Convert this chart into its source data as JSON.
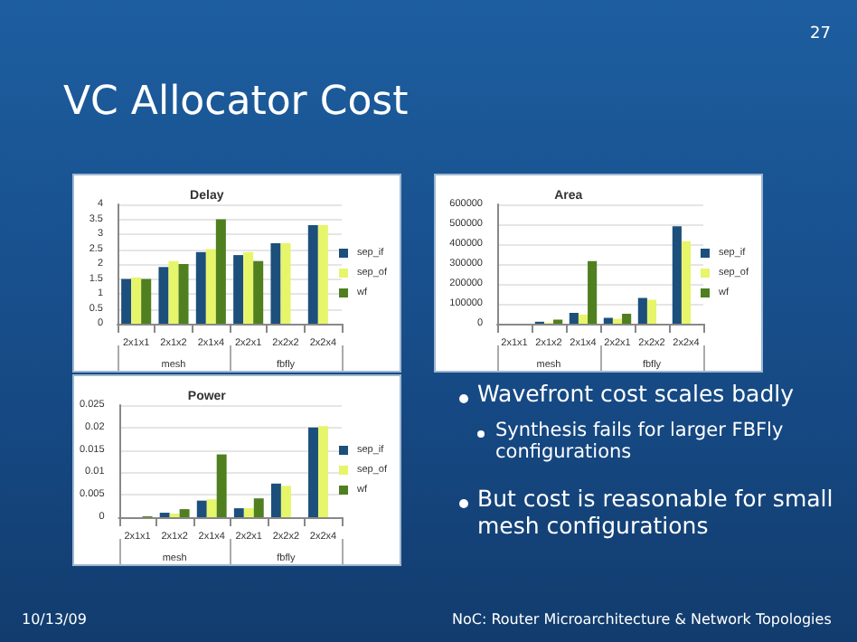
{
  "chart_data": [
    {
      "type": "other",
      "title": "VC Allocator Cost",
      "annotations": [
        "27",
        "Wavefront cost scales badly",
        "Synthesis fails for larger FBFly configurations",
        "But cost is reasonable for small mesh configurations",
        "10/13/09",
        "NoC: Router Microarchitecture & Network Topologies"
      ]
    },
    {
      "type": "bar",
      "title": "Delay",
      "categories": [
        "2x1x1",
        "2x1x2",
        "2x1x4",
        "2x2x1",
        "2x2x2",
        "2x2x4"
      ],
      "annotations": [
        "mesh",
        "fbfly"
      ],
      "series": [
        {
          "name": "sep_if",
          "color": "#1c4f7c",
          "values": [
            1.5,
            1.9,
            2.4,
            2.3,
            2.7,
            3.3
          ]
        },
        {
          "name": "sep_of",
          "color": "#e6f56a",
          "values": [
            1.55,
            2.1,
            2.5,
            2.4,
            2.7,
            3.3
          ]
        },
        {
          "name": "wf",
          "color": "#4f7f1f",
          "values": [
            1.5,
            2.0,
            3.5,
            2.1,
            null,
            null
          ]
        }
      ],
      "ylim": [
        0,
        4
      ],
      "yticks": [
        0,
        0.5,
        1,
        1.5,
        2,
        2.5,
        3,
        3.5,
        4
      ],
      "grid": "y",
      "legend": "right"
    },
    {
      "type": "bar",
      "title": "Area",
      "categories": [
        "2x1x1",
        "2x1x2",
        "2x1x4",
        "2x2x1",
        "2x2x2",
        "2x2x4"
      ],
      "annotations": [
        "mesh",
        "fbfly"
      ],
      "series": [
        {
          "name": "sep_if",
          "color": "#1c4f7c",
          "values": [
            0,
            10000,
            55000,
            30000,
            130000,
            490000
          ]
        },
        {
          "name": "sep_of",
          "color": "#e6f56a",
          "values": [
            0,
            5000,
            45000,
            25000,
            120000,
            415000
          ]
        },
        {
          "name": "wf",
          "color": "#4f7f1f",
          "values": [
            0,
            20000,
            315000,
            50000,
            null,
            null
          ]
        }
      ],
      "ylim": [
        0,
        600000
      ],
      "yticks": [
        0,
        100000,
        200000,
        300000,
        400000,
        500000,
        600000
      ],
      "grid": "y",
      "legend": "right"
    },
    {
      "type": "bar",
      "title": "Power",
      "categories": [
        "2x1x1",
        "2x1x2",
        "2x1x4",
        "2x2x1",
        "2x2x2",
        "2x2x4"
      ],
      "annotations": [
        "mesh",
        "fbfly"
      ],
      "series": [
        {
          "name": "sep_if",
          "color": "#1c4f7c",
          "values": [
            null,
            0.001,
            0.0037,
            0.002,
            0.0075,
            0.02
          ]
        },
        {
          "name": "sep_of",
          "color": "#e6f56a",
          "values": [
            null,
            0.0008,
            0.004,
            0.002,
            0.007,
            0.0203
          ]
        },
        {
          "name": "wf",
          "color": "#4f7f1f",
          "values": [
            0.0002,
            0.0018,
            0.014,
            0.0042,
            null,
            null
          ]
        }
      ],
      "ylim": [
        0,
        0.025
      ],
      "yticks": [
        0,
        0.005,
        0.01,
        0.015,
        0.02,
        0.025
      ],
      "grid": "y",
      "legend": "right"
    }
  ]
}
